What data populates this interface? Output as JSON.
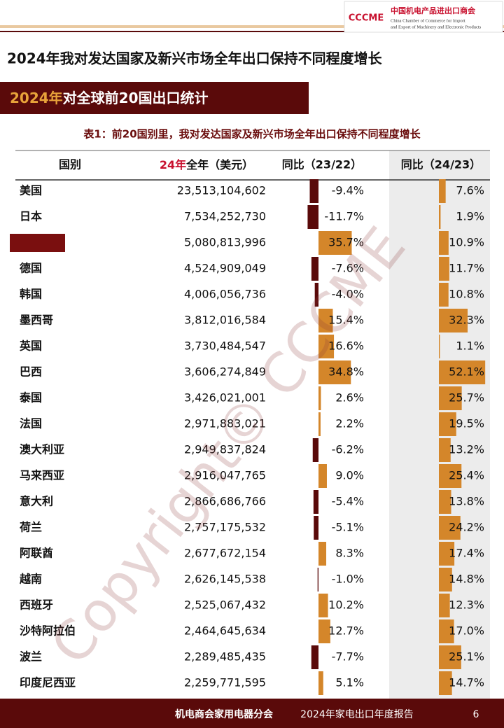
{
  "header": {
    "logo_mark": "CCCME",
    "logo_cn": "中国机电产品进出口商会",
    "logo_en_1": "China Chamber of Commerce for Import",
    "logo_en_2": "and Export of Machinery and Electronic Products",
    "title": "2024年我对发达国家及新兴市场全年出口保持不同程度增长"
  },
  "banner": {
    "year": "2024年",
    "text": "对全球前20国出口统计"
  },
  "table": {
    "caption": "表1：前20国别里，我对发达国家及新兴市场全年出口保持不同程度增长",
    "columns": {
      "country": "国别",
      "exports_year": "24年",
      "exports_rest": "全年（美元）",
      "yoy_23_22": "同比（23/22）",
      "yoy_24_23": "同比（24/23）"
    },
    "rows": [
      {
        "country": "美国",
        "exports": "23,513,104,602",
        "yoy_23_22": {
          "value": -9.4,
          "label": "-9.4%"
        },
        "yoy_24_23": {
          "value": 7.6,
          "label": "7.6%"
        }
      },
      {
        "country": "日本",
        "exports": "7,534,252,730",
        "yoy_23_22": {
          "value": -11.7,
          "label": "-11.7%"
        },
        "yoy_24_23": {
          "value": 1.9,
          "label": "1.9%"
        }
      },
      {
        "country": null,
        "exports": "5,080,813,996",
        "yoy_23_22": {
          "value": 35.7,
          "label": "35.7%"
        },
        "yoy_24_23": {
          "value": 10.9,
          "label": "10.9%"
        }
      },
      {
        "country": "德国",
        "exports": "4,524,909,049",
        "yoy_23_22": {
          "value": -7.6,
          "label": "-7.6%"
        },
        "yoy_24_23": {
          "value": 11.7,
          "label": "11.7%"
        }
      },
      {
        "country": "韩国",
        "exports": "4,006,056,736",
        "yoy_23_22": {
          "value": -4.0,
          "label": "-4.0%"
        },
        "yoy_24_23": {
          "value": 10.8,
          "label": "10.8%"
        }
      },
      {
        "country": "墨西哥",
        "exports": "3,812,016,584",
        "yoy_23_22": {
          "value": 15.4,
          "label": "15.4%"
        },
        "yoy_24_23": {
          "value": 32.3,
          "label": "32.3%"
        }
      },
      {
        "country": "英国",
        "exports": "3,730,484,547",
        "yoy_23_22": {
          "value": 16.6,
          "label": "16.6%"
        },
        "yoy_24_23": {
          "value": 1.1,
          "label": "1.1%"
        }
      },
      {
        "country": "巴西",
        "exports": "3,606,274,849",
        "yoy_23_22": {
          "value": 34.8,
          "label": "34.8%"
        },
        "yoy_24_23": {
          "value": 52.1,
          "label": "52.1%"
        }
      },
      {
        "country": "泰国",
        "exports": "3,426,021,001",
        "yoy_23_22": {
          "value": 2.6,
          "label": "2.6%"
        },
        "yoy_24_23": {
          "value": 25.7,
          "label": "25.7%"
        }
      },
      {
        "country": "法国",
        "exports": "2,971,883,021",
        "yoy_23_22": {
          "value": 2.2,
          "label": "2.2%"
        },
        "yoy_24_23": {
          "value": 19.5,
          "label": "19.5%"
        }
      },
      {
        "country": "澳大利亚",
        "exports": "2,949,837,824",
        "yoy_23_22": {
          "value": -6.2,
          "label": "-6.2%"
        },
        "yoy_24_23": {
          "value": 13.2,
          "label": "13.2%"
        }
      },
      {
        "country": "马来西亚",
        "exports": "2,916,047,765",
        "yoy_23_22": {
          "value": 9.0,
          "label": "9.0%"
        },
        "yoy_24_23": {
          "value": 25.4,
          "label": "25.4%"
        }
      },
      {
        "country": "意大利",
        "exports": "2,866,686,766",
        "yoy_23_22": {
          "value": -5.4,
          "label": "-5.4%"
        },
        "yoy_24_23": {
          "value": 13.8,
          "label": "13.8%"
        }
      },
      {
        "country": "荷兰",
        "exports": "2,757,175,532",
        "yoy_23_22": {
          "value": -5.1,
          "label": "-5.1%"
        },
        "yoy_24_23": {
          "value": 24.2,
          "label": "24.2%"
        }
      },
      {
        "country": "阿联酋",
        "exports": "2,677,672,154",
        "yoy_23_22": {
          "value": 8.3,
          "label": "8.3%"
        },
        "yoy_24_23": {
          "value": 17.4,
          "label": "17.4%"
        }
      },
      {
        "country": "越南",
        "exports": "2,626,145,538",
        "yoy_23_22": {
          "value": -1.0,
          "label": "-1.0%"
        },
        "yoy_24_23": {
          "value": 14.8,
          "label": "14.8%"
        }
      },
      {
        "country": "西班牙",
        "exports": "2,525,067,432",
        "yoy_23_22": {
          "value": 10.2,
          "label": "10.2%"
        },
        "yoy_24_23": {
          "value": 12.3,
          "label": "12.3%"
        }
      },
      {
        "country": "沙特阿拉伯",
        "exports": "2,464,645,634",
        "yoy_23_22": {
          "value": 12.7,
          "label": "12.7%"
        },
        "yoy_24_23": {
          "value": 17.0,
          "label": "17.0%"
        }
      },
      {
        "country": "波兰",
        "exports": "2,289,485,435",
        "yoy_23_22": {
          "value": -7.7,
          "label": "-7.7%"
        },
        "yoy_24_23": {
          "value": 25.1,
          "label": "25.1%"
        }
      },
      {
        "country": "印度尼西亚",
        "exports": "2,259,771,595",
        "yoy_23_22": {
          "value": 5.1,
          "label": "5.1%"
        },
        "yoy_24_23": {
          "value": 14.7,
          "label": "14.7%"
        }
      }
    ]
  },
  "watermark": "Copyright© CCCME",
  "footer": {
    "org": "机电商会家用电器分会",
    "report": "2024年家电出口年度报告",
    "page": "6"
  }
}
